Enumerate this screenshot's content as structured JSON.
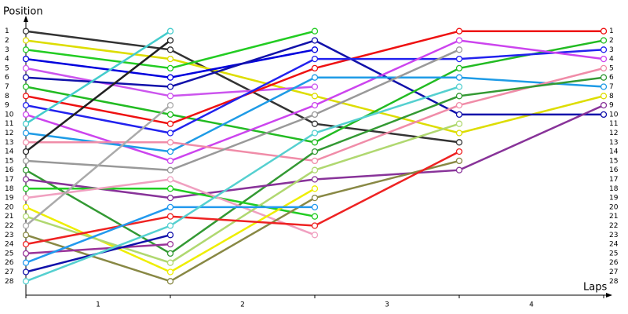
{
  "chart_data": {
    "type": "line",
    "y_title": "Position",
    "x_title": "Laps",
    "x": [
      0,
      1,
      2,
      3,
      4
    ],
    "xlim": [
      0,
      4
    ],
    "xticks": [
      {
        "value": 0.5,
        "label": "1"
      },
      {
        "value": 1.5,
        "label": "2"
      },
      {
        "value": 2.5,
        "label": "3"
      },
      {
        "value": 3.5,
        "label": "4"
      }
    ],
    "ylim": [
      -0.5,
      29.5
    ],
    "y_inverted": true,
    "yticks": [
      1,
      2,
      3,
      4,
      5,
      6,
      7,
      8,
      9,
      10,
      11,
      12,
      13,
      14,
      15,
      16,
      17,
      18,
      19,
      20,
      21,
      22,
      23,
      24,
      25,
      26,
      27,
      28
    ],
    "series": [
      {
        "color": "#333333",
        "values": [
          1,
          3,
          11,
          13,
          null
        ]
      },
      {
        "color": "#dddd00",
        "values": [
          2,
          4,
          8,
          12,
          8
        ]
      },
      {
        "color": "#22cc22",
        "values": [
          3,
          5,
          1,
          null,
          null
        ]
      },
      {
        "color": "#0000dd",
        "values": [
          4,
          6,
          3,
          null,
          null
        ]
      },
      {
        "color": "#cc55ee",
        "values": [
          5,
          8,
          7,
          null,
          null
        ]
      },
      {
        "color": "#1111aa",
        "values": [
          6,
          7,
          2,
          10,
          10
        ]
      },
      {
        "color": "#22bb22",
        "values": [
          7,
          10,
          13,
          5,
          2
        ]
      },
      {
        "color": "#ee1111",
        "values": [
          8,
          11,
          5,
          1,
          1
        ]
      },
      {
        "color": "#2222ee",
        "values": [
          9,
          12,
          4,
          4,
          3
        ]
      },
      {
        "color": "#cc44ee",
        "values": [
          10,
          15,
          9,
          2,
          4
        ]
      },
      {
        "color": "#44cccc",
        "values": [
          11,
          1,
          null,
          null,
          null
        ]
      },
      {
        "color": "#1e9be6",
        "values": [
          12,
          14,
          6,
          6,
          7
        ]
      },
      {
        "color": "#f08ca8",
        "values": [
          13,
          13,
          15,
          9,
          5
        ]
      },
      {
        "color": "#222222",
        "values": [
          14,
          2,
          null,
          null,
          null
        ]
      },
      {
        "color": "#999999",
        "values": [
          15,
          16,
          10,
          3,
          null
        ]
      },
      {
        "color": "#339933",
        "values": [
          16,
          25,
          14,
          8,
          6
        ]
      },
      {
        "color": "#883399",
        "values": [
          17,
          19,
          17,
          16,
          9
        ]
      },
      {
        "color": "#22cc22",
        "values": [
          18,
          18,
          21,
          null,
          null
        ]
      },
      {
        "color": "#f0a0c0",
        "values": [
          19,
          17,
          23,
          null,
          null
        ]
      },
      {
        "color": "#eeee00",
        "values": [
          20,
          27,
          18,
          null,
          null
        ]
      },
      {
        "color": "#b0d870",
        "values": [
          21,
          26,
          16,
          11,
          null
        ]
      },
      {
        "color": "#aaaaaa",
        "values": [
          22,
          9,
          null,
          null,
          null
        ]
      },
      {
        "color": "#888844",
        "values": [
          23,
          28,
          19,
          15,
          null
        ]
      },
      {
        "color": "#ee2222",
        "values": [
          24,
          21,
          22,
          14,
          null
        ]
      },
      {
        "color": "#993399",
        "values": [
          25,
          24,
          null,
          null,
          null
        ]
      },
      {
        "color": "#2299ee",
        "values": [
          26,
          20,
          20,
          null,
          null
        ]
      },
      {
        "color": "#1111aa",
        "values": [
          27,
          23,
          null,
          null,
          null
        ]
      },
      {
        "color": "#55d0d0",
        "values": [
          28,
          22,
          12,
          7,
          null
        ]
      }
    ]
  }
}
